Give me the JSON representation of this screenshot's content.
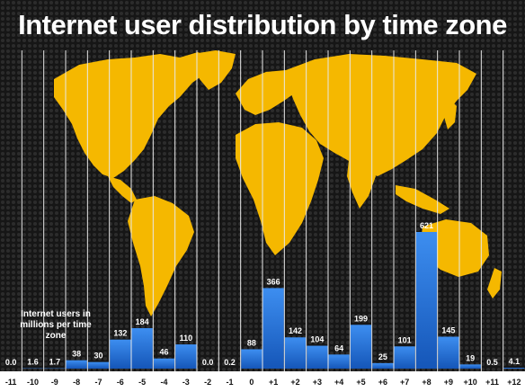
{
  "title": "Internet user distribution by time zone",
  "note": "Internet users in millions per time zone",
  "colors": {
    "background": "#1a1a1a",
    "map": "#f5b800",
    "bar": "#1e6ed6",
    "bar_light": "#3d8ef0",
    "axis_band": "#ffffff",
    "divider": "#e8e8e8",
    "text": "#ffffff"
  },
  "chart_data": {
    "type": "bar",
    "title": "Internet user distribution by time zone",
    "categories": [
      "-11",
      "-10",
      "-9",
      "-8",
      "-7",
      "-6",
      "-5",
      "-4",
      "-3",
      "-2",
      "-1",
      "0",
      "+1",
      "+2",
      "+3",
      "+4",
      "+5",
      "+6",
      "+7",
      "+8",
      "+9",
      "+10",
      "+11",
      "+12"
    ],
    "values": [
      0.0,
      1.6,
      1.7,
      38,
      30,
      132,
      184,
      46,
      110,
      0.0,
      0.2,
      88,
      366,
      142,
      104,
      64,
      199,
      25,
      101,
      621,
      145,
      19,
      0.5,
      4.1
    ],
    "value_labels": [
      "0.0",
      "1.6",
      "1.7",
      "38",
      "30",
      "132",
      "184",
      "46",
      "110",
      "0.0",
      "0.2",
      "88",
      "366",
      "142",
      "104",
      "64",
      "199",
      "25",
      "101",
      "621",
      "145",
      "19",
      "0.5",
      "4.1"
    ],
    "ylabel": "Internet users in millions per time zone",
    "ylim": [
      0,
      621
    ],
    "grid": false,
    "background_image": "world-map"
  }
}
